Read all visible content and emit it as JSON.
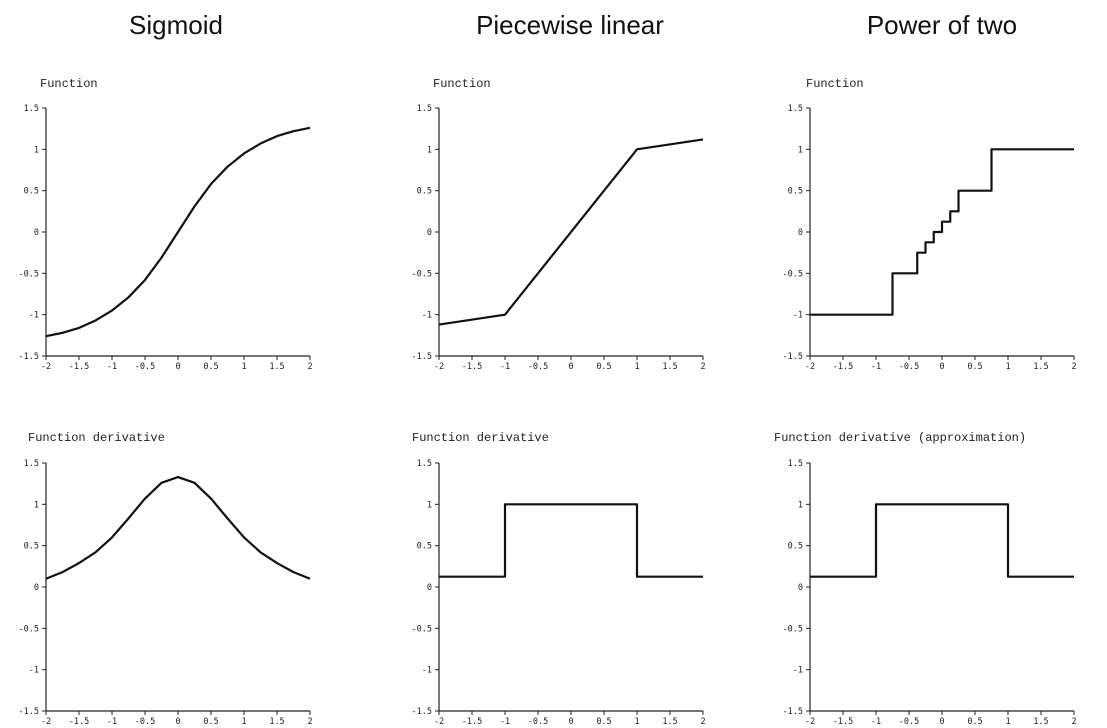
{
  "columns": [
    {
      "title": "Sigmoid"
    },
    {
      "title": "Piecewise linear"
    },
    {
      "title": "Power of two"
    }
  ],
  "chart_data": [
    {
      "type": "line",
      "title": "Sigmoid",
      "label": "Function",
      "xlim": [
        -2,
        2
      ],
      "ylim": [
        -1.5,
        1.5
      ],
      "xticks": [
        "-2",
        "-1.5",
        "-1",
        "-0.5",
        "0",
        "0.5",
        "1",
        "1.5",
        "2"
      ],
      "yticks": [
        "-1.5",
        "-1",
        "-0.5",
        "0",
        "0.5",
        "1",
        "1.5"
      ],
      "series": [
        {
          "x": [
            -2,
            -1.75,
            -1.5,
            -1.25,
            -1,
            -0.75,
            -0.5,
            -0.25,
            0,
            0.25,
            0.5,
            0.75,
            1,
            1.25,
            1.5,
            1.75,
            2
          ],
          "y": [
            -1.26,
            -1.22,
            -1.16,
            -1.07,
            -0.95,
            -0.79,
            -0.58,
            -0.31,
            0,
            0.31,
            0.58,
            0.79,
            0.95,
            1.07,
            1.16,
            1.22,
            1.26
          ]
        }
      ]
    },
    {
      "type": "line",
      "title": "Piecewise linear",
      "label": "Function",
      "xlim": [
        -2,
        2
      ],
      "ylim": [
        -1.5,
        1.5
      ],
      "xticks": [
        "-2",
        "-1.5",
        "-1",
        "-0.5",
        "0",
        "0.5",
        "1",
        "1.5",
        "2"
      ],
      "yticks": [
        "-1.5",
        "-1",
        "-0.5",
        "0",
        "0.5",
        "1",
        "1.5"
      ],
      "series": [
        {
          "x": [
            -2,
            -1,
            1,
            2
          ],
          "y": [
            -1.12,
            -1,
            1,
            1.12
          ]
        }
      ]
    },
    {
      "type": "line",
      "title": "Power of two",
      "label": "Function",
      "xlim": [
        -2,
        2
      ],
      "ylim": [
        -1.5,
        1.5
      ],
      "xticks": [
        "-2",
        "-1.5",
        "-1",
        "-0.5",
        "0",
        "0.5",
        "1",
        "1.5",
        "2"
      ],
      "yticks": [
        "-1.5",
        "-1",
        "-0.5",
        "0",
        "0.5",
        "1",
        "1.5"
      ],
      "series": [
        {
          "x": [
            -2,
            -0.75,
            -0.75,
            -0.375,
            -0.375,
            -0.25,
            -0.25,
            -0.125,
            -0.125,
            0,
            0,
            0.125,
            0.125,
            0.25,
            0.25,
            0.375,
            0.375,
            0.75,
            0.75,
            2
          ],
          "y": [
            -1,
            -1,
            -0.5,
            -0.5,
            -0.25,
            -0.25,
            -0.125,
            -0.125,
            0,
            0,
            0.125,
            0.125,
            0.25,
            0.25,
            0.5,
            0.5,
            0.5,
            0.5,
            1,
            1
          ]
        }
      ]
    },
    {
      "type": "line",
      "title": "Sigmoid",
      "label": "Function derivative",
      "xlim": [
        -2,
        2
      ],
      "ylim": [
        -1.5,
        1.5
      ],
      "xticks": [
        "-2",
        "-1.5",
        "-1",
        "-0.5",
        "0",
        "0.5",
        "1",
        "1.5",
        "2"
      ],
      "yticks": [
        "-1.5",
        "-1",
        "-0.5",
        "0",
        "0.5",
        "1",
        "1.5"
      ],
      "series": [
        {
          "x": [
            -2,
            -1.75,
            -1.5,
            -1.25,
            -1,
            -0.75,
            -0.5,
            -0.25,
            0,
            0.25,
            0.5,
            0.75,
            1,
            1.25,
            1.5,
            1.75,
            2
          ],
          "y": [
            0.1,
            0.18,
            0.29,
            0.42,
            0.6,
            0.83,
            1.07,
            1.26,
            1.33,
            1.26,
            1.07,
            0.83,
            0.6,
            0.42,
            0.29,
            0.18,
            0.1
          ]
        }
      ]
    },
    {
      "type": "line",
      "title": "Piecewise linear",
      "label": "Function derivative",
      "xlim": [
        -2,
        2
      ],
      "ylim": [
        -1.5,
        1.5
      ],
      "xticks": [
        "-2",
        "-1.5",
        "-1",
        "-0.5",
        "0",
        "0.5",
        "1",
        "1.5",
        "2"
      ],
      "yticks": [
        "-1.5",
        "-1",
        "-0.5",
        "0",
        "0.5",
        "1",
        "1.5"
      ],
      "series": [
        {
          "x": [
            -2,
            -1,
            -1,
            1,
            1,
            2
          ],
          "y": [
            0.125,
            0.125,
            1,
            1,
            0.125,
            0.125
          ]
        }
      ]
    },
    {
      "type": "line",
      "title": "Power of two",
      "label": "Function derivative (approximation)",
      "xlim": [
        -2,
        2
      ],
      "ylim": [
        -1.5,
        1.5
      ],
      "xticks": [
        "-2",
        "-1.5",
        "-1",
        "-0.5",
        "0",
        "0.5",
        "1",
        "1.5",
        "2"
      ],
      "yticks": [
        "-1.5",
        "-1",
        "-0.5",
        "0",
        "0.5",
        "1",
        "1.5"
      ],
      "series": [
        {
          "x": [
            -2,
            -1,
            -1,
            1,
            1,
            2
          ],
          "y": [
            0.125,
            0.125,
            1,
            1,
            0.125,
            0.125
          ]
        }
      ]
    }
  ]
}
